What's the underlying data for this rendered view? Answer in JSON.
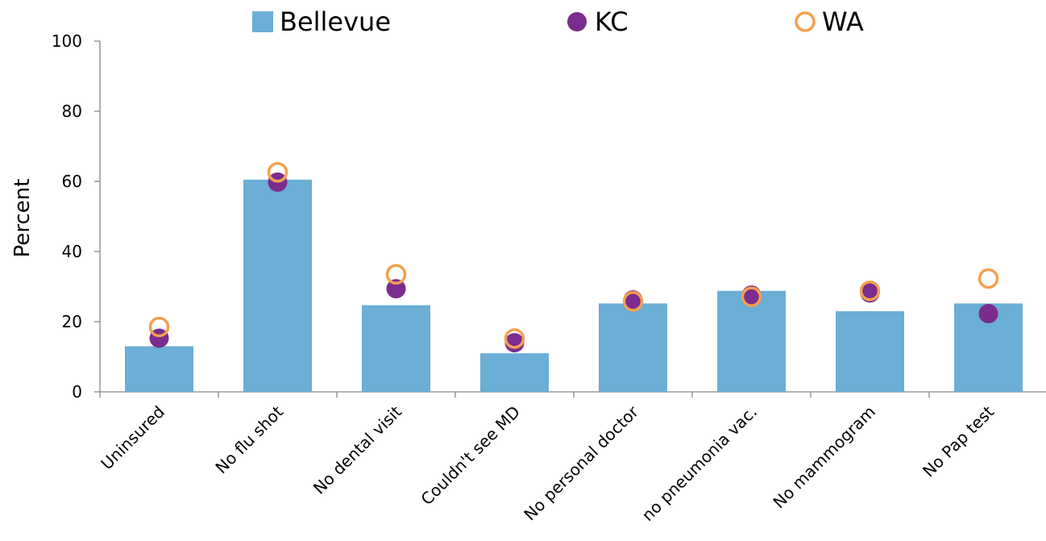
{
  "chart_data": {
    "type": "bar",
    "title": "",
    "xlabel": "",
    "ylabel": "Percent",
    "ylim": [
      0,
      100
    ],
    "yticks": [
      0,
      20,
      40,
      60,
      80,
      100
    ],
    "grid": false,
    "legend_position": "top",
    "categories": [
      "Uninsured",
      "No flu shot",
      "No dental visit",
      "Couldn't see MD",
      "No personal doctor",
      "no pneumonia vac.",
      "No mammogram",
      "No Pap test"
    ],
    "series": [
      {
        "name": "Bellevue",
        "kind": "bar",
        "color": "#6BAED6",
        "values": [
          13,
          60.5,
          24.7,
          11,
          25.2,
          28.8,
          23,
          25.2
        ]
      },
      {
        "name": "KC",
        "kind": "filled-circle",
        "color": "#7B2C8E",
        "values": [
          15.3,
          59.8,
          29.4,
          14,
          26.2,
          27.6,
          28.2,
          22.3
        ]
      },
      {
        "name": "WA",
        "kind": "open-circle",
        "color": "#F4A050",
        "values": [
          18.5,
          62.6,
          33.5,
          15.2,
          25.8,
          27.1,
          28.8,
          32.3
        ]
      }
    ]
  }
}
